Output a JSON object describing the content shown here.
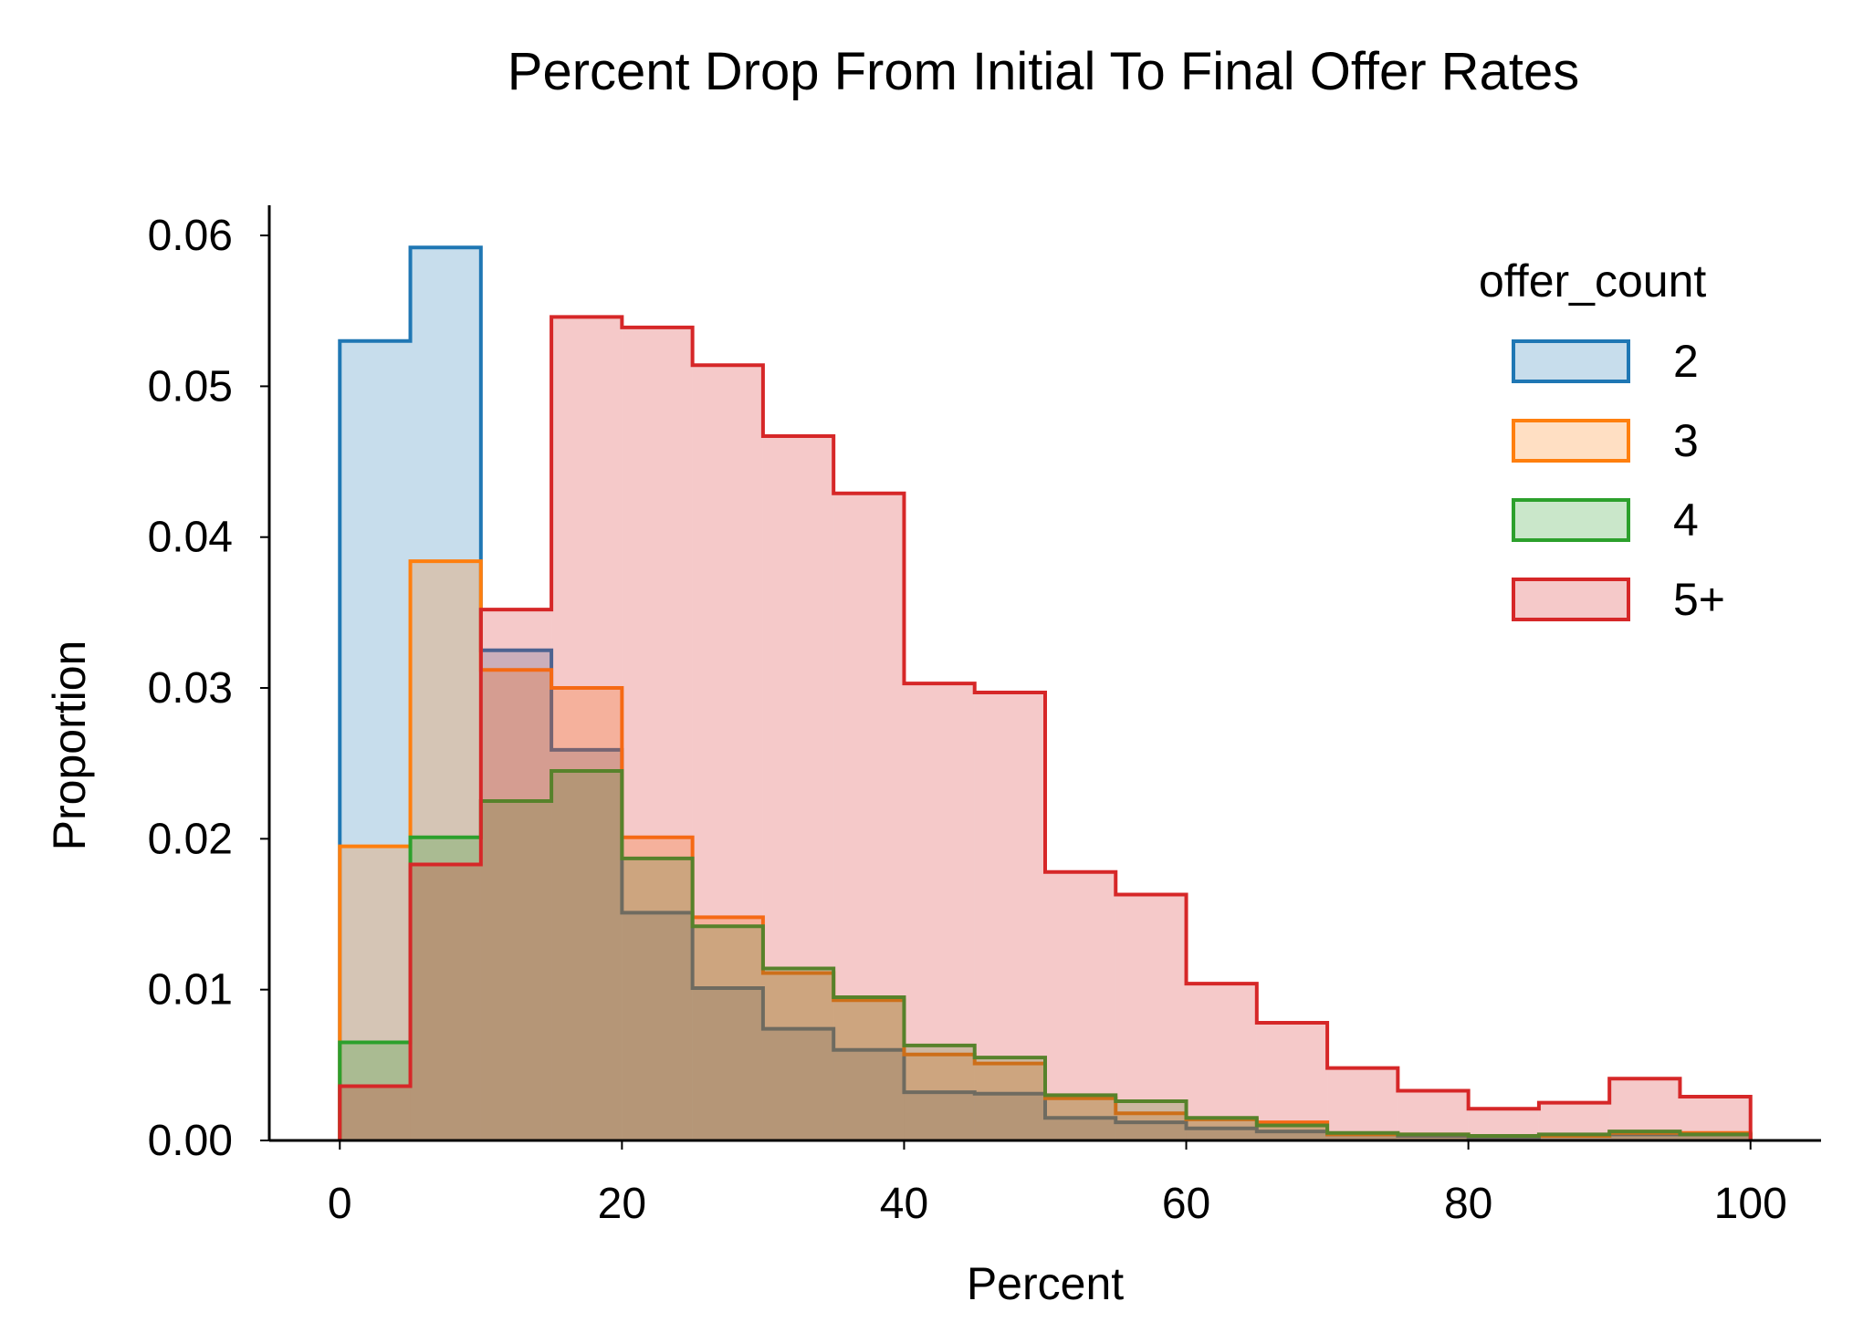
{
  "chart_data": {
    "type": "histogram",
    "title": "Percent Drop From Initial To Final Offer Rates",
    "xlabel": "Percent",
    "ylabel": "Proportion",
    "xlim": [
      -5,
      105
    ],
    "ylim": [
      0,
      0.062
    ],
    "xticks": [
      0,
      20,
      40,
      60,
      80,
      100
    ],
    "yticks": [
      0.0,
      0.01,
      0.02,
      0.03,
      0.04,
      0.05,
      0.06
    ],
    "ytick_decimals": 2,
    "grid": false,
    "bin_edges": [
      0,
      5,
      10,
      15,
      20,
      25,
      30,
      35,
      40,
      45,
      50,
      55,
      60,
      65,
      70,
      75,
      80,
      85,
      90,
      95,
      100
    ],
    "legend": {
      "title": "offer_count",
      "placement": "top-right"
    },
    "series": [
      {
        "name": "2",
        "color": "#1f77b4",
        "values": [
          0.053,
          0.0592,
          0.0325,
          0.0259,
          0.0151,
          0.0101,
          0.0074,
          0.006,
          0.0032,
          0.0031,
          0.0015,
          0.0012,
          0.0008,
          0.0006,
          0.0004,
          0.0003,
          0.0002,
          0.0003,
          0.0004,
          0.0004
        ]
      },
      {
        "name": "3",
        "color": "#ff7f0e",
        "values": [
          0.0195,
          0.0384,
          0.0312,
          0.03,
          0.0201,
          0.0148,
          0.0111,
          0.0093,
          0.0057,
          0.0051,
          0.0028,
          0.0018,
          0.0014,
          0.0012,
          0.0004,
          0.0004,
          0.0003,
          0.0003,
          0.0005,
          0.0005
        ]
      },
      {
        "name": "4",
        "color": "#2ca02c",
        "values": [
          0.0065,
          0.0201,
          0.0225,
          0.0245,
          0.0187,
          0.0142,
          0.0114,
          0.0095,
          0.0063,
          0.0055,
          0.003,
          0.0026,
          0.0015,
          0.001,
          0.0005,
          0.0004,
          0.0003,
          0.0004,
          0.0006,
          0.0004
        ]
      },
      {
        "name": "5+",
        "color": "#d62728",
        "values": [
          0.0036,
          0.0183,
          0.0352,
          0.0546,
          0.0539,
          0.0514,
          0.0467,
          0.0429,
          0.0303,
          0.0297,
          0.0178,
          0.0163,
          0.0104,
          0.0078,
          0.0048,
          0.0033,
          0.0021,
          0.0025,
          0.0041,
          0.0029
        ]
      }
    ]
  }
}
